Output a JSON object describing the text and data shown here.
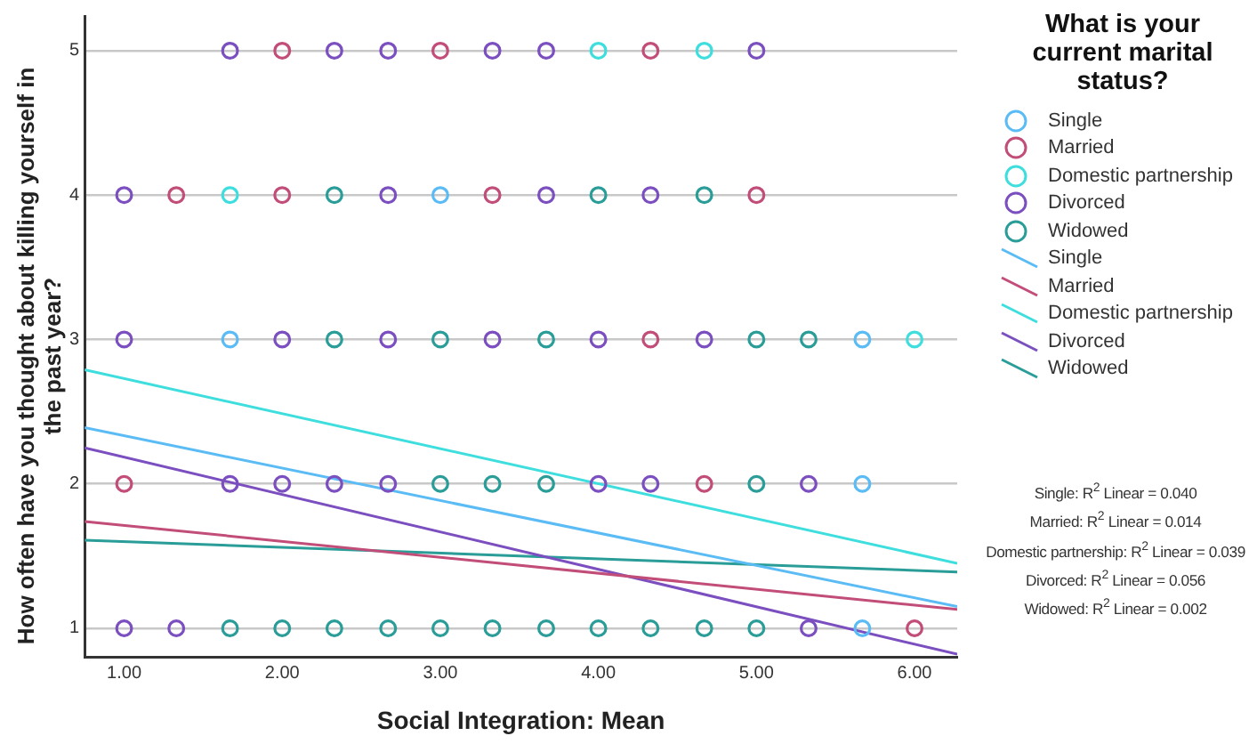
{
  "chart_data": {
    "type": "scatter",
    "xlabel": "Social Integration: Mean",
    "ylabel": "How often have you thought about killing yourself in the past year?",
    "legend_title": "What is your current marital status?",
    "legend": "right",
    "grid": "y",
    "marker": "circle",
    "xlim": [
      0.75,
      6.27
    ],
    "ylim": [
      0.8,
      5.24
    ],
    "xticks": [
      {
        "value": 1,
        "label": "1.00"
      },
      {
        "value": 2,
        "label": "2.00"
      },
      {
        "value": 3,
        "label": "3.00"
      },
      {
        "value": 4,
        "label": "4.00"
      },
      {
        "value": 5,
        "label": "5.00"
      },
      {
        "value": 6,
        "label": "6.00"
      }
    ],
    "yticks": [
      1,
      2,
      3,
      4,
      5
    ],
    "series": [
      {
        "name": "Single",
        "type": "scatter",
        "color": "#5bbcf5",
        "x": [
          3.0,
          1.67,
          5.67,
          5.67,
          5.67
        ],
        "values": [
          4,
          3,
          3,
          2,
          1
        ]
      },
      {
        "name": "Married",
        "type": "scatter",
        "color": "#c14d78",
        "x": [
          2.0,
          3.0,
          4.33,
          1.33,
          2.0,
          3.33,
          5.0,
          4.33,
          1.0,
          4.67,
          6.0
        ],
        "values": [
          5,
          5,
          5,
          4,
          4,
          4,
          4,
          3,
          2,
          2,
          1
        ]
      },
      {
        "name": "Domestic partnership",
        "type": "scatter",
        "color": "#3fdede",
        "x": [
          4.0,
          4.67,
          1.67,
          6.0
        ],
        "values": [
          5,
          5,
          4,
          3
        ]
      },
      {
        "name": "Divorced",
        "type": "scatter",
        "color": "#7b4fbf",
        "x": [
          1.67,
          2.33,
          2.67,
          3.33,
          3.67,
          5.0,
          1.0,
          2.67,
          3.67,
          4.33,
          1.0,
          2.0,
          2.67,
          3.33,
          4.0,
          4.67,
          1.67,
          2.0,
          2.33,
          2.67,
          4.0,
          4.33,
          5.33,
          1.0,
          1.33,
          5.33
        ],
        "values": [
          5,
          5,
          5,
          5,
          5,
          5,
          4,
          4,
          4,
          4,
          3,
          3,
          3,
          3,
          3,
          3,
          2,
          2,
          2,
          2,
          2,
          2,
          2,
          1,
          1,
          1
        ]
      },
      {
        "name": "Widowed",
        "type": "scatter",
        "color": "#2a9d98",
        "x": [
          2.33,
          4.0,
          4.67,
          2.33,
          3.0,
          3.67,
          5.0,
          5.33,
          3.0,
          3.33,
          3.67,
          5.0,
          1.67,
          2.0,
          2.33,
          2.67,
          3.0,
          3.33,
          3.67,
          4.0,
          4.33,
          4.67,
          5.0
        ],
        "values": [
          4,
          4,
          4,
          3,
          3,
          3,
          3,
          3,
          2,
          2,
          2,
          2,
          1,
          1,
          1,
          1,
          1,
          1,
          1,
          1,
          1,
          1,
          1
        ]
      },
      {
        "name": "Single",
        "type": "line",
        "marker": "none",
        "color": "#5bbcf5",
        "x": [
          0.75,
          6.27
        ],
        "values": [
          2.39,
          1.15
        ]
      },
      {
        "name": "Married",
        "type": "line",
        "marker": "none",
        "color": "#c14d78",
        "x": [
          0.75,
          6.27
        ],
        "values": [
          1.74,
          1.13
        ]
      },
      {
        "name": "Domestic partnership",
        "type": "line",
        "marker": "none",
        "color": "#3fdede",
        "x": [
          0.75,
          6.27
        ],
        "values": [
          2.79,
          1.45
        ]
      },
      {
        "name": "Divorced",
        "type": "line",
        "marker": "none",
        "color": "#7b4fbf",
        "x": [
          0.75,
          6.27
        ],
        "values": [
          2.25,
          0.82
        ]
      },
      {
        "name": "Widowed",
        "type": "line",
        "marker": "none",
        "color": "#2a9d98",
        "x": [
          0.75,
          6.27
        ],
        "values": [
          1.61,
          1.39
        ]
      }
    ],
    "annotations": [
      "Single: R$^{2}$ Linear = 0.040",
      "Married: R$^{2}$ Linear = 0.014",
      "Domestic partnership: R$^{2}$ Linear = 0.039",
      "Divorced: R$^{2}$ Linear = 0.056",
      "Widowed: R$^{2}$ Linear = 0.002"
    ]
  }
}
